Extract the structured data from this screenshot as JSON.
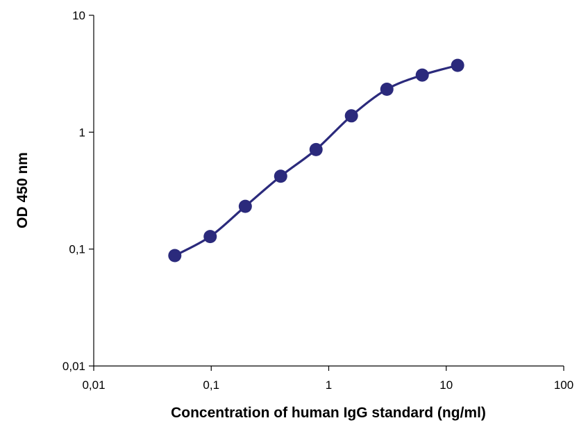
{
  "chart_data": {
    "type": "line",
    "title": "",
    "xlabel": "Concentration of human IgG standard (ng/ml)",
    "ylabel": "OD 450 nm",
    "x_scale": "log",
    "y_scale": "log",
    "xlim": [
      0.01,
      100
    ],
    "ylim": [
      0.01,
      10
    ],
    "x_ticks": [
      0.01,
      0.1,
      1,
      10,
      100
    ],
    "x_tick_labels": [
      "0,01",
      "0,1",
      "1",
      "10",
      "100"
    ],
    "y_ticks": [
      0.01,
      0.1,
      1,
      10
    ],
    "y_tick_labels": [
      "0,01",
      "0,1",
      "1",
      "10"
    ],
    "grid": false,
    "legend": "none",
    "series": [
      {
        "color": "#2b2a7c",
        "x": [
          0.049,
          0.098,
          0.195,
          0.39,
          0.78,
          1.56,
          3.125,
          6.25,
          12.5
        ],
        "y": [
          0.088,
          0.128,
          0.232,
          0.42,
          0.71,
          1.38,
          2.33,
          3.08,
          3.73
        ]
      }
    ]
  }
}
